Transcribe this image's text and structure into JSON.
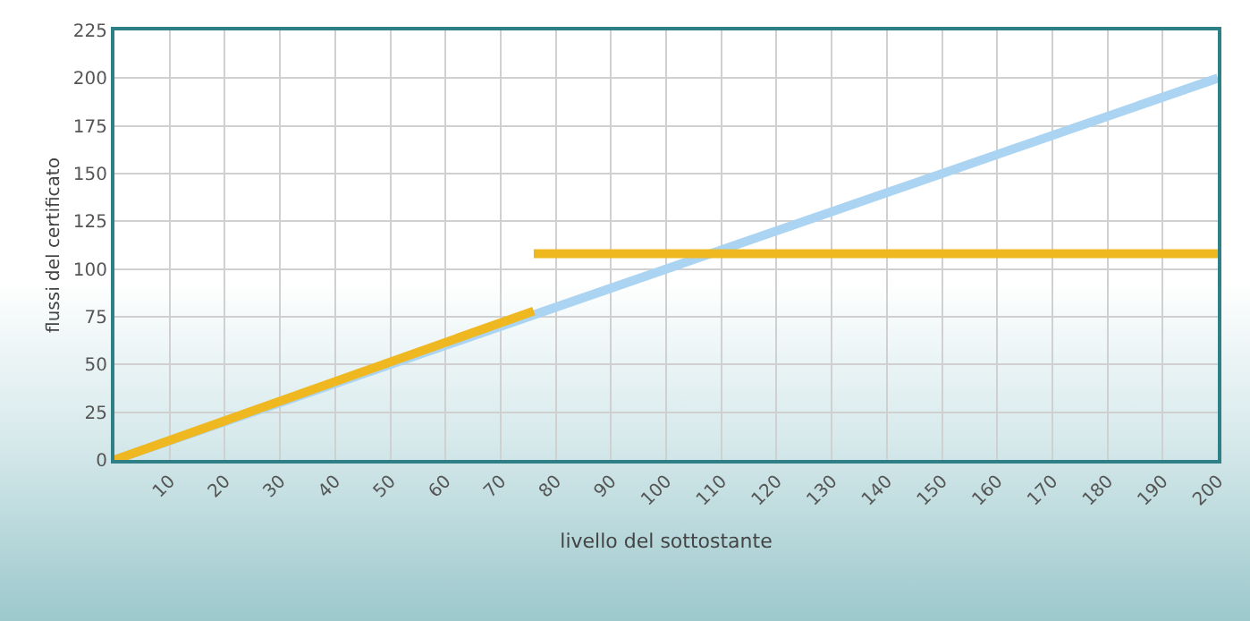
{
  "chart_data": {
    "type": "line",
    "xlabel": "livello del sottostante",
    "ylabel": "flussi del certificato",
    "xlim": [
      0,
      200
    ],
    "xticks": [
      10,
      20,
      30,
      40,
      50,
      60,
      70,
      80,
      90,
      100,
      110,
      120,
      130,
      140,
      150,
      160,
      170,
      180,
      190,
      200
    ],
    "ylim": [
      0,
      225
    ],
    "yticks": [
      0,
      25,
      50,
      75,
      100,
      125,
      150,
      175,
      200,
      225
    ],
    "grid": true,
    "series": [
      {
        "color": "#aad4f2",
        "x": [
          0,
          200
        ],
        "values": [
          0,
          200
        ]
      },
      {
        "color": "#f0b820",
        "x": [
          0,
          76
        ],
        "values": [
          0,
          78
        ]
      },
      {
        "color": "#f0b820",
        "x": [
          76,
          200
        ],
        "values": [
          108,
          108
        ]
      }
    ]
  }
}
